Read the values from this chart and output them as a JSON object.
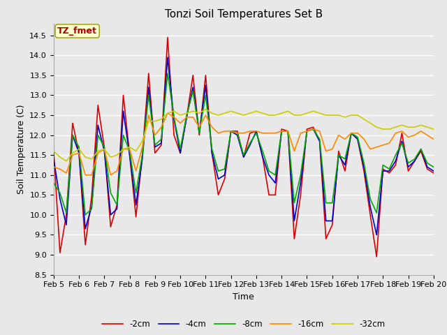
{
  "title": "Tonzi Soil Temperatures Set B",
  "xlabel": "Time",
  "ylabel": "Soil Temperature (C)",
  "ylim": [
    8.5,
    14.8
  ],
  "xlim": [
    0,
    15
  ],
  "xtick_labels": [
    "Feb 5",
    "Feb 6",
    "Feb 7",
    "Feb 8",
    "Feb 9",
    "Feb 10",
    "Feb 11",
    "Feb 12",
    "Feb 13",
    "Feb 14",
    "Feb 15",
    "Feb 16",
    "Feb 17",
    "Feb 18",
    "Feb 19",
    "Feb 20"
  ],
  "legend_labels": [
    "-2cm",
    "-4cm",
    "-8cm",
    "-16cm",
    "-32cm"
  ],
  "line_colors": [
    "#dd0000",
    "#0000cc",
    "#00aa00",
    "#ff8800",
    "#cccc00"
  ],
  "annotation_text": "TZ_fmet",
  "annotation_color": "#aa0000",
  "annotation_bg": "#ffffcc",
  "background_color": "#e8e8e8",
  "grid_color": "#ffffff",
  "title_fontsize": 11,
  "label_fontsize": 9,
  "tick_fontsize": 8,
  "series_2cm": [
    11.6,
    9.05,
    10.0,
    12.3,
    11.55,
    9.25,
    10.45,
    12.75,
    11.7,
    9.7,
    10.25,
    13.0,
    11.5,
    9.95,
    11.5,
    13.55,
    11.55,
    11.75,
    14.45,
    12.0,
    11.55,
    12.45,
    13.5,
    12.0,
    13.5,
    11.55,
    10.5,
    10.9,
    12.1,
    12.1,
    11.45,
    12.05,
    12.1,
    11.45,
    10.5,
    10.5,
    12.15,
    12.1,
    9.4,
    10.5,
    12.15,
    12.2,
    11.85,
    9.4,
    9.75,
    11.6,
    11.1,
    12.05,
    11.9,
    11.1,
    10.0,
    8.95,
    11.15,
    11.05,
    11.25,
    12.05,
    11.1,
    11.35,
    11.6,
    11.15,
    11.05
  ],
  "series_4cm": [
    11.4,
    10.4,
    9.75,
    12.0,
    11.55,
    9.65,
    10.2,
    12.25,
    11.6,
    10.0,
    10.15,
    12.6,
    11.5,
    10.25,
    11.4,
    13.2,
    11.7,
    11.8,
    13.95,
    12.4,
    11.55,
    12.45,
    13.2,
    12.05,
    13.25,
    11.55,
    10.9,
    11.0,
    12.1,
    12.0,
    11.45,
    11.75,
    12.1,
    11.45,
    11.0,
    10.8,
    12.1,
    12.1,
    9.85,
    10.8,
    12.1,
    12.15,
    11.85,
    9.85,
    9.85,
    11.5,
    11.25,
    12.05,
    11.9,
    11.2,
    10.2,
    9.5,
    11.1,
    11.1,
    11.35,
    11.85,
    11.2,
    11.35,
    11.65,
    11.2,
    11.1
  ],
  "series_8cm": [
    10.8,
    10.55,
    10.05,
    12.0,
    11.7,
    10.0,
    10.15,
    12.0,
    11.7,
    10.55,
    10.25,
    12.0,
    11.6,
    10.55,
    11.5,
    13.0,
    11.75,
    11.9,
    13.55,
    12.45,
    11.65,
    12.5,
    13.1,
    12.05,
    13.0,
    11.65,
    11.1,
    11.15,
    12.1,
    12.05,
    11.5,
    11.8,
    12.05,
    11.6,
    11.1,
    11.0,
    12.1,
    12.1,
    10.3,
    11.0,
    12.1,
    12.15,
    11.9,
    10.3,
    10.3,
    11.5,
    11.4,
    12.05,
    11.95,
    11.3,
    10.4,
    10.05,
    11.25,
    11.15,
    11.5,
    11.8,
    11.3,
    11.4,
    11.65,
    11.3,
    11.2
  ],
  "series_16cm": [
    11.2,
    11.15,
    11.05,
    11.5,
    11.55,
    11.0,
    11.0,
    11.55,
    11.65,
    11.0,
    11.1,
    11.65,
    11.65,
    11.1,
    11.7,
    12.5,
    12.0,
    12.2,
    12.55,
    12.45,
    12.3,
    12.45,
    12.45,
    12.2,
    12.5,
    12.2,
    12.05,
    12.1,
    12.1,
    12.05,
    12.05,
    12.1,
    12.1,
    12.05,
    12.05,
    12.05,
    12.1,
    12.1,
    11.6,
    12.05,
    12.1,
    12.15,
    12.1,
    11.6,
    11.65,
    12.0,
    11.9,
    12.05,
    12.05,
    11.9,
    11.65,
    11.7,
    11.75,
    11.8,
    12.05,
    12.1,
    11.95,
    12.0,
    12.1,
    12.0,
    11.9
  ],
  "series_32cm": [
    11.6,
    11.45,
    11.35,
    11.55,
    11.65,
    11.45,
    11.4,
    11.6,
    11.65,
    11.45,
    11.5,
    11.65,
    11.7,
    11.6,
    11.85,
    12.35,
    12.35,
    12.4,
    12.55,
    12.6,
    12.5,
    12.55,
    12.6,
    12.55,
    12.65,
    12.55,
    12.5,
    12.55,
    12.6,
    12.55,
    12.5,
    12.55,
    12.6,
    12.55,
    12.5,
    12.5,
    12.55,
    12.6,
    12.5,
    12.5,
    12.55,
    12.6,
    12.55,
    12.5,
    12.5,
    12.5,
    12.45,
    12.5,
    12.5,
    12.4,
    12.3,
    12.2,
    12.15,
    12.15,
    12.2,
    12.25,
    12.2,
    12.2,
    12.25,
    12.2,
    12.15
  ]
}
